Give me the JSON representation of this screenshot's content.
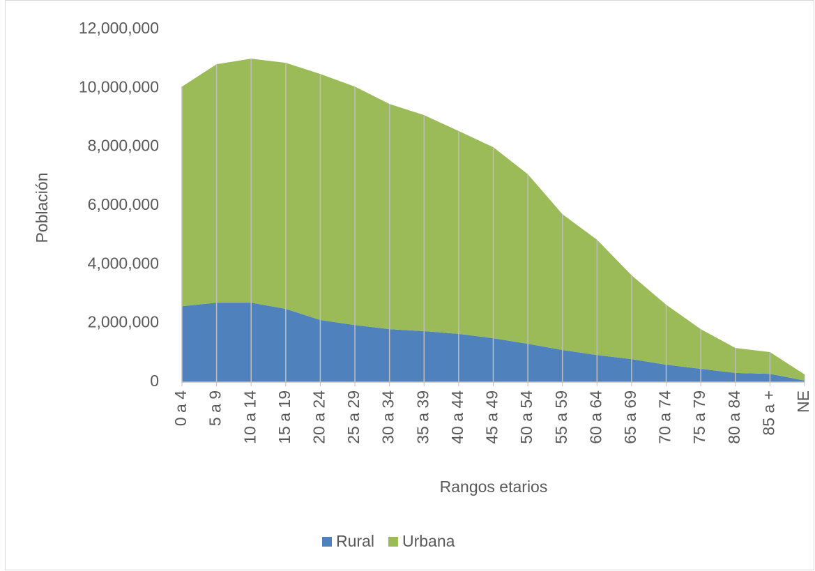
{
  "chart_data": {
    "type": "stacked_area",
    "x_label": "Rangos etarios",
    "y_label": "Población",
    "categories": [
      "0 a 4",
      "5 a 9",
      "10 a 14",
      "15 a 19",
      "20 a 24",
      "25 a 29",
      "30 a 34",
      "35 a 39",
      "40 a 44",
      "45 a 49",
      "50 a 54",
      "55 a 59",
      "60 a 64",
      "65 a 69",
      "70 a 74",
      "75 a 79",
      "80 a 84",
      "85 a +",
      "NE"
    ],
    "series": [
      {
        "name": "Rural",
        "color": "#4f81bd",
        "values": [
          2580000,
          2700000,
          2700000,
          2490000,
          2110000,
          1940000,
          1800000,
          1730000,
          1640000,
          1490000,
          1300000,
          1090000,
          920000,
          780000,
          590000,
          450000,
          310000,
          280000,
          50000
        ]
      },
      {
        "name": "Urbana",
        "color": "#9bbb59",
        "values": [
          7470000,
          8110000,
          8300000,
          8370000,
          8370000,
          8110000,
          7660000,
          7350000,
          6900000,
          6500000,
          5770000,
          4620000,
          3920000,
          2850000,
          2040000,
          1350000,
          850000,
          740000,
          210000
        ]
      }
    ],
    "ylim": [
      0,
      12000000
    ],
    "yticks": [
      0,
      {
        "value": 2000000,
        "label": "2,000,000"
      },
      {
        "value": 4000000,
        "label": "4,000,000"
      },
      {
        "value": 6000000,
        "label": "6,000,000"
      },
      {
        "value": 8000000,
        "label": "8,000,000"
      },
      {
        "value": 10000000,
        "label": "10,000,000"
      },
      {
        "value": 12000000,
        "label": "12,000,000"
      }
    ],
    "legend": "bottom"
  }
}
